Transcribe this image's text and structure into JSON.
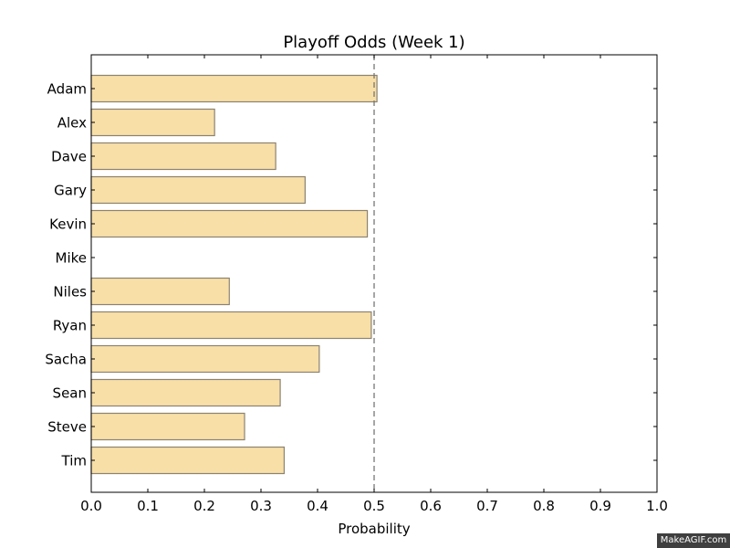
{
  "chart_data": {
    "type": "bar",
    "orientation": "horizontal",
    "title": "Playoff Odds (Week 1)",
    "xlabel": "Probability",
    "ylabel": "",
    "xlim": [
      0.0,
      1.0
    ],
    "xticks": [
      "0.0",
      "0.1",
      "0.2",
      "0.3",
      "0.4",
      "0.5",
      "0.6",
      "0.7",
      "0.8",
      "0.9",
      "1.0"
    ],
    "categories": [
      "Adam",
      "Alex",
      "Dave",
      "Gary",
      "Kevin",
      "Mike",
      "Niles",
      "Ryan",
      "Sacha",
      "Sean",
      "Steve",
      "Tim"
    ],
    "values": [
      0.505,
      0.218,
      0.326,
      0.378,
      0.488,
      0.0,
      0.244,
      0.495,
      0.403,
      0.334,
      0.271,
      0.341
    ],
    "reference_line": {
      "x": 0.5,
      "style": "dashed"
    },
    "bar_color": "#f8dfa8",
    "bar_edge_color": "#8c8270",
    "grid": false,
    "legend": "none"
  },
  "watermark": "MakeAGIF.com"
}
